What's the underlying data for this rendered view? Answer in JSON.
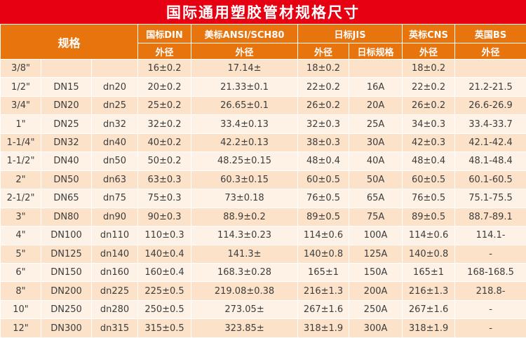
{
  "chart_data": {
    "type": "table",
    "title": "国际通用塑胶管材规格尺寸",
    "spec_header": "规格",
    "column_groups": [
      {
        "label": "国标DIN",
        "sub": [
          "外径"
        ]
      },
      {
        "label": "美标ANSI/SCH80",
        "sub": [
          "外径"
        ]
      },
      {
        "label": "日标JIS",
        "sub": [
          "外径",
          "日标规格"
        ]
      },
      {
        "label": "英标CNS",
        "sub": [
          "外径"
        ]
      },
      {
        "label": "英国BS",
        "sub": [
          "外径"
        ]
      }
    ],
    "rows": [
      [
        "3/8\"",
        "",
        "",
        "16±0.2",
        "17.14±",
        "18±0.2",
        "",
        "18±0.2",
        ""
      ],
      [
        "1/2\"",
        "DN15",
        "dn20",
        "20±0.2",
        "21.33±0.1",
        "22±0.2",
        "16A",
        "22±0.2",
        "21.2-21.5"
      ],
      [
        "3/4\"",
        "DN20",
        "dn25",
        "25±0.2",
        "26.65±0.1",
        "26±0.2",
        "20A",
        "26±0.2",
        "26.6-26.9"
      ],
      [
        "1\"",
        "DN25",
        "dn32",
        "32±0.2",
        "33.4±0.13",
        "32±0.3",
        "25A",
        "34±0.3",
        "33.4-33.7"
      ],
      [
        "1-1/4\"",
        "DN32",
        "dn40",
        "40±0.2",
        "42.2±0.13",
        "38±0.3",
        "30A",
        "42±0.3",
        "42.1-42.4"
      ],
      [
        "1-1/2\"",
        "DN40",
        "dn50",
        "50±0.2",
        "48.25±0.15",
        "48±0.4",
        "40A",
        "48±0.4",
        "48.1-48.4"
      ],
      [
        "2\"",
        "DN50",
        "dn63",
        "63±0.3",
        "60.3±0.15",
        "60±0.5",
        "50A",
        "60±0.5",
        "60.1-60.5"
      ],
      [
        "2-1/2\"",
        "DN65",
        "dn75",
        "75±0.3",
        "73±0.18",
        "76±0.5",
        "65A",
        "76±0.5",
        "75.1-75.5"
      ],
      [
        "3\"",
        "DN80",
        "dn90",
        "90±0.3",
        "88.9±0.2",
        "89±0.5",
        "75A",
        "89±0.5",
        "88.7-89.1"
      ],
      [
        "4\"",
        "DN100",
        "dn110",
        "110±0.3",
        "114.3±0.23",
        "114±0.6",
        "100A",
        "114±0.6",
        "114.1-"
      ],
      [
        "5\"",
        "DN125",
        "dn140",
        "140±0.4",
        "141.3±",
        "140±0.8",
        "125A",
        "140±0.8",
        "-"
      ],
      [
        "6\"",
        "DN150",
        "dn160",
        "160±0.4",
        "168.3±0.28",
        "165±1",
        "150A",
        "165±1",
        "168-168.5"
      ],
      [
        "8\"",
        "DN200",
        "dn225",
        "225±0.5",
        "219.08±0.38",
        "216±1.3",
        "200A",
        "216±1.3",
        "218.8-"
      ],
      [
        "10\"",
        "DN250",
        "dn280",
        "250±0.5",
        "273.05±",
        "267±1.6",
        "250A",
        "267±1.6",
        "-"
      ],
      [
        "12\"",
        "DN300",
        "dn315",
        "315±0.5",
        "323.85±",
        "318±1.9",
        "300A",
        "318±1.9",
        "-"
      ]
    ],
    "colors": {
      "title_bg": "#e60012",
      "header_bg": "#e8740e",
      "header_text": "#ffffff",
      "row_odd_bg": "#fbe2c9",
      "row_even_bg": "#fdf2e5",
      "text": "#3d3d3d"
    }
  }
}
